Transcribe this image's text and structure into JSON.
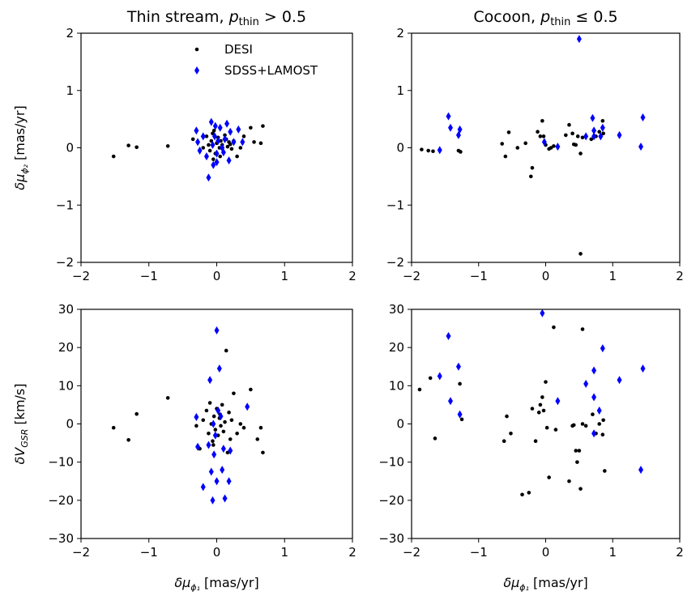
{
  "chart_data": [
    {
      "type": "scatter",
      "title_main": "Thin stream, ",
      "title_math": "p",
      "title_sub": "thin",
      "title_rel": " > 0.5",
      "ylabel_main": "δμ",
      "ylabel_sub": "ϕ₂",
      "ylabel_unit": " [mas/yr]",
      "xlabel_main": "",
      "xlabel_sub": "",
      "xlabel_unit": "",
      "xlim": [
        -2,
        2
      ],
      "ylim": [
        -2,
        2
      ],
      "xticks": [
        -2,
        -1,
        0,
        1,
        2
      ],
      "yticks": [
        -2,
        -1,
        0,
        1,
        2
      ],
      "legend": {
        "placement": "upper-center",
        "entries": [
          {
            "label": "DESI",
            "marker": "dot",
            "color": "#000000"
          },
          {
            "label": "SDSS+LAMOST",
            "marker": "diamond",
            "color": "#0000ff"
          }
        ]
      },
      "series": [
        {
          "name": "DESI",
          "marker": "dot",
          "color": "#000000",
          "points": [
            [
              -1.52,
              -0.15
            ],
            [
              -1.3,
              0.04
            ],
            [
              -1.18,
              0.01
            ],
            [
              -0.72,
              0.03
            ],
            [
              -0.35,
              0.15
            ],
            [
              -0.28,
              0.1
            ],
            [
              -0.2,
              0.0
            ],
            [
              -0.15,
              0.2
            ],
            [
              -0.12,
              0.05
            ],
            [
              -0.1,
              -0.05
            ],
            [
              -0.08,
              0.12
            ],
            [
              -0.06,
              0.25
            ],
            [
              -0.04,
              0.3
            ],
            [
              -0.02,
              -0.1
            ],
            [
              0.0,
              0.08
            ],
            [
              0.02,
              0.18
            ],
            [
              0.04,
              0.0
            ],
            [
              0.06,
              0.12
            ],
            [
              0.08,
              0.05
            ],
            [
              0.1,
              -0.08
            ],
            [
              0.12,
              0.22
            ],
            [
              0.14,
              0.15
            ],
            [
              0.16,
              0.02
            ],
            [
              0.18,
              0.1
            ],
            [
              0.2,
              0.06
            ],
            [
              0.22,
              -0.02
            ],
            [
              0.25,
              0.12
            ],
            [
              0.3,
              -0.15
            ],
            [
              0.35,
              0.0
            ],
            [
              0.4,
              0.2
            ],
            [
              0.5,
              0.35
            ],
            [
              0.55,
              0.1
            ],
            [
              0.65,
              0.08
            ],
            [
              0.68,
              0.38
            ],
            [
              -0.05,
              -0.2
            ],
            [
              0.05,
              -0.15
            ]
          ]
        },
        {
          "name": "SDSS+LAMOST",
          "marker": "diamond",
          "color": "#0000ff",
          "points": [
            [
              -0.3,
              0.3
            ],
            [
              -0.28,
              0.1
            ],
            [
              -0.25,
              -0.05
            ],
            [
              -0.15,
              -0.15
            ],
            [
              -0.12,
              -0.52
            ],
            [
              -0.08,
              0.45
            ],
            [
              -0.06,
              0.05
            ],
            [
              -0.05,
              -0.3
            ],
            [
              -0.03,
              0.2
            ],
            [
              -0.02,
              0.38
            ],
            [
              0.0,
              -0.1
            ],
            [
              0.02,
              0.12
            ],
            [
              0.05,
              0.35
            ],
            [
              0.08,
              0.0
            ],
            [
              0.1,
              -0.08
            ],
            [
              0.15,
              0.42
            ],
            [
              0.18,
              -0.22
            ],
            [
              0.2,
              0.28
            ],
            [
              0.25,
              0.1
            ],
            [
              0.32,
              0.32
            ],
            [
              0.38,
              0.1
            ],
            [
              -0.2,
              0.2
            ],
            [
              0.0,
              -0.25
            ],
            [
              0.12,
              0.15
            ]
          ]
        }
      ]
    },
    {
      "type": "scatter",
      "title_main": "Cocoon, ",
      "title_math": "p",
      "title_sub": "thin",
      "title_rel": " ≤ 0.5",
      "ylabel_main": "",
      "ylabel_sub": "",
      "ylabel_unit": "",
      "xlabel_main": "",
      "xlabel_sub": "",
      "xlabel_unit": "",
      "xlim": [
        -2,
        2
      ],
      "ylim": [
        -2,
        2
      ],
      "xticks": [
        -2,
        -1,
        0,
        1,
        2
      ],
      "yticks": [
        -2,
        -1,
        0,
        1,
        2
      ],
      "series": [
        {
          "name": "DESI",
          "marker": "dot",
          "color": "#000000",
          "points": [
            [
              -1.85,
              -0.03
            ],
            [
              -1.75,
              -0.05
            ],
            [
              -1.68,
              -0.06
            ],
            [
              -1.3,
              -0.05
            ],
            [
              -1.27,
              -0.07
            ],
            [
              -0.65,
              0.07
            ],
            [
              -0.6,
              -0.15
            ],
            [
              -0.55,
              0.27
            ],
            [
              -0.42,
              0.0
            ],
            [
              -0.3,
              0.08
            ],
            [
              -0.22,
              -0.5
            ],
            [
              -0.2,
              -0.35
            ],
            [
              -0.12,
              0.28
            ],
            [
              -0.08,
              0.2
            ],
            [
              -0.05,
              0.47
            ],
            [
              -0.03,
              0.2
            ],
            [
              0.0,
              0.05
            ],
            [
              0.05,
              -0.02
            ],
            [
              0.08,
              0.0
            ],
            [
              0.12,
              0.03
            ],
            [
              0.35,
              0.4
            ],
            [
              0.4,
              0.25
            ],
            [
              0.42,
              0.06
            ],
            [
              0.45,
              0.05
            ],
            [
              0.48,
              0.2
            ],
            [
              0.52,
              -1.85
            ],
            [
              0.52,
              -0.1
            ],
            [
              0.55,
              0.18
            ],
            [
              0.75,
              0.2
            ],
            [
              0.8,
              0.28
            ],
            [
              0.85,
              0.47
            ],
            [
              0.86,
              0.25
            ],
            [
              0.3,
              0.22
            ],
            [
              0.68,
              0.15
            ]
          ]
        },
        {
          "name": "SDSS+LAMOST",
          "marker": "diamond",
          "color": "#0000ff",
          "points": [
            [
              -1.58,
              -0.04
            ],
            [
              -1.45,
              0.55
            ],
            [
              -1.42,
              0.35
            ],
            [
              -1.3,
              0.22
            ],
            [
              -1.28,
              0.32
            ],
            [
              -0.02,
              0.1
            ],
            [
              0.18,
              0.02
            ],
            [
              0.5,
              1.9
            ],
            [
              0.6,
              0.2
            ],
            [
              0.7,
              0.52
            ],
            [
              0.72,
              0.3
            ],
            [
              0.72,
              0.2
            ],
            [
              0.82,
              0.2
            ],
            [
              0.85,
              0.35
            ],
            [
              1.1,
              0.22
            ],
            [
              1.42,
              0.02
            ],
            [
              1.45,
              0.53
            ]
          ]
        }
      ]
    },
    {
      "type": "scatter",
      "title_main": "",
      "title_math": "",
      "title_sub": "",
      "title_rel": "",
      "ylabel_main": "δV",
      "ylabel_sub": "GSR",
      "ylabel_unit": " [km/s]",
      "xlabel_main": "δμ",
      "xlabel_sub": "ϕ₁",
      "xlabel_unit": " [mas/yr]",
      "xlim": [
        -2,
        2
      ],
      "ylim": [
        -30,
        30
      ],
      "xticks": [
        -2,
        -1,
        0,
        1,
        2
      ],
      "yticks": [
        -30,
        -20,
        -10,
        0,
        10,
        20,
        30
      ],
      "series": [
        {
          "name": "DESI",
          "marker": "dot",
          "color": "#000000",
          "points": [
            [
              -1.52,
              -1.0
            ],
            [
              -1.3,
              -4.2
            ],
            [
              -1.18,
              2.6
            ],
            [
              -0.72,
              6.8
            ],
            [
              -0.3,
              -0.5
            ],
            [
              -0.25,
              -6.5
            ],
            [
              -0.2,
              1.0
            ],
            [
              -0.15,
              3.5
            ],
            [
              -0.12,
              -2.5
            ],
            [
              -0.1,
              5.5
            ],
            [
              -0.08,
              0.0
            ],
            [
              -0.06,
              -4.5
            ],
            [
              -0.04,
              2.0
            ],
            [
              -0.02,
              -1.5
            ],
            [
              0.0,
              4.0
            ],
            [
              0.02,
              -3.0
            ],
            [
              0.04,
              1.5
            ],
            [
              0.06,
              -0.5
            ],
            [
              0.08,
              5.0
            ],
            [
              0.1,
              -2.0
            ],
            [
              0.12,
              0.5
            ],
            [
              0.14,
              19.2
            ],
            [
              0.16,
              -7.5
            ],
            [
              0.18,
              3.0
            ],
            [
              0.2,
              -4.0
            ],
            [
              0.22,
              1.0
            ],
            [
              0.25,
              8.0
            ],
            [
              0.3,
              -2.5
            ],
            [
              0.35,
              0.0
            ],
            [
              0.4,
              -1.0
            ],
            [
              0.5,
              9.0
            ],
            [
              0.6,
              -4.0
            ],
            [
              0.65,
              -1.0
            ],
            [
              0.68,
              -7.5
            ],
            [
              -0.05,
              -5.5
            ],
            [
              0.05,
              2.5
            ]
          ]
        },
        {
          "name": "SDSS+LAMOST",
          "marker": "diamond",
          "color": "#0000ff",
          "points": [
            [
              -0.3,
              1.8
            ],
            [
              -0.28,
              -6.0
            ],
            [
              -0.2,
              -16.5
            ],
            [
              -0.12,
              -5.5
            ],
            [
              -0.1,
              11.5
            ],
            [
              -0.08,
              -12.5
            ],
            [
              -0.06,
              -20.0
            ],
            [
              -0.04,
              -8.0
            ],
            [
              -0.02,
              -3.0
            ],
            [
              0.0,
              -15.0
            ],
            [
              0.0,
              24.5
            ],
            [
              0.02,
              3.5
            ],
            [
              0.04,
              14.5
            ],
            [
              0.06,
              2.0
            ],
            [
              0.08,
              -12.0
            ],
            [
              0.1,
              -6.5
            ],
            [
              0.12,
              -19.5
            ],
            [
              0.18,
              -15.0
            ],
            [
              0.2,
              -7.0
            ],
            [
              0.45,
              4.5
            ],
            [
              -0.05,
              0.0
            ]
          ]
        }
      ]
    },
    {
      "type": "scatter",
      "title_main": "",
      "title_math": "",
      "title_sub": "",
      "title_rel": "",
      "ylabel_main": "",
      "ylabel_sub": "",
      "ylabel_unit": "",
      "xlabel_main": "δμ",
      "xlabel_sub": "ϕ₁",
      "xlabel_unit": " [mas/yr]",
      "xlim": [
        -2,
        2
      ],
      "ylim": [
        -30,
        30
      ],
      "xticks": [
        -2,
        -1,
        0,
        1,
        2
      ],
      "yticks": [
        -30,
        -20,
        -10,
        0,
        10,
        20,
        30
      ],
      "series": [
        {
          "name": "DESI",
          "marker": "dot",
          "color": "#000000",
          "points": [
            [
              -1.88,
              9.0
            ],
            [
              -1.72,
              12.0
            ],
            [
              -1.65,
              -3.8
            ],
            [
              -1.28,
              10.5
            ],
            [
              -1.25,
              1.2
            ],
            [
              -0.62,
              -4.5
            ],
            [
              -0.58,
              2.0
            ],
            [
              -0.52,
              -2.5
            ],
            [
              -0.35,
              -18.5
            ],
            [
              -0.25,
              -18.0
            ],
            [
              -0.2,
              4.0
            ],
            [
              -0.15,
              -4.5
            ],
            [
              -0.1,
              3.0
            ],
            [
              -0.08,
              5.0
            ],
            [
              -0.05,
              7.0
            ],
            [
              -0.03,
              3.5
            ],
            [
              0.0,
              11.0
            ],
            [
              0.02,
              -1.0
            ],
            [
              0.05,
              -14.0
            ],
            [
              0.12,
              25.3
            ],
            [
              0.15,
              -1.5
            ],
            [
              0.35,
              -15.0
            ],
            [
              0.4,
              -0.5
            ],
            [
              0.42,
              -0.3
            ],
            [
              0.45,
              -7.0
            ],
            [
              0.47,
              -10.0
            ],
            [
              0.5,
              -7.0
            ],
            [
              0.52,
              -17.0
            ],
            [
              0.55,
              24.8
            ],
            [
              0.55,
              0.0
            ],
            [
              0.6,
              -0.5
            ],
            [
              0.75,
              -2.5
            ],
            [
              0.8,
              0.0
            ],
            [
              0.85,
              -2.8
            ],
            [
              0.86,
              1.0
            ],
            [
              0.88,
              -12.3
            ],
            [
              0.7,
              2.5
            ]
          ]
        },
        {
          "name": "SDSS+LAMOST",
          "marker": "diamond",
          "color": "#0000ff",
          "points": [
            [
              -1.58,
              12.5
            ],
            [
              -1.45,
              23.0
            ],
            [
              -1.42,
              6.0
            ],
            [
              -1.3,
              15.0
            ],
            [
              -1.28,
              2.5
            ],
            [
              -0.05,
              29.0
            ],
            [
              0.18,
              6.0
            ],
            [
              0.6,
              10.5
            ],
            [
              0.72,
              14.0
            ],
            [
              0.72,
              7.0
            ],
            [
              0.72,
              -2.5
            ],
            [
              0.8,
              3.5
            ],
            [
              0.85,
              19.8
            ],
            [
              1.1,
              11.5
            ],
            [
              1.42,
              -12.0
            ],
            [
              1.45,
              14.5
            ]
          ]
        }
      ]
    }
  ]
}
